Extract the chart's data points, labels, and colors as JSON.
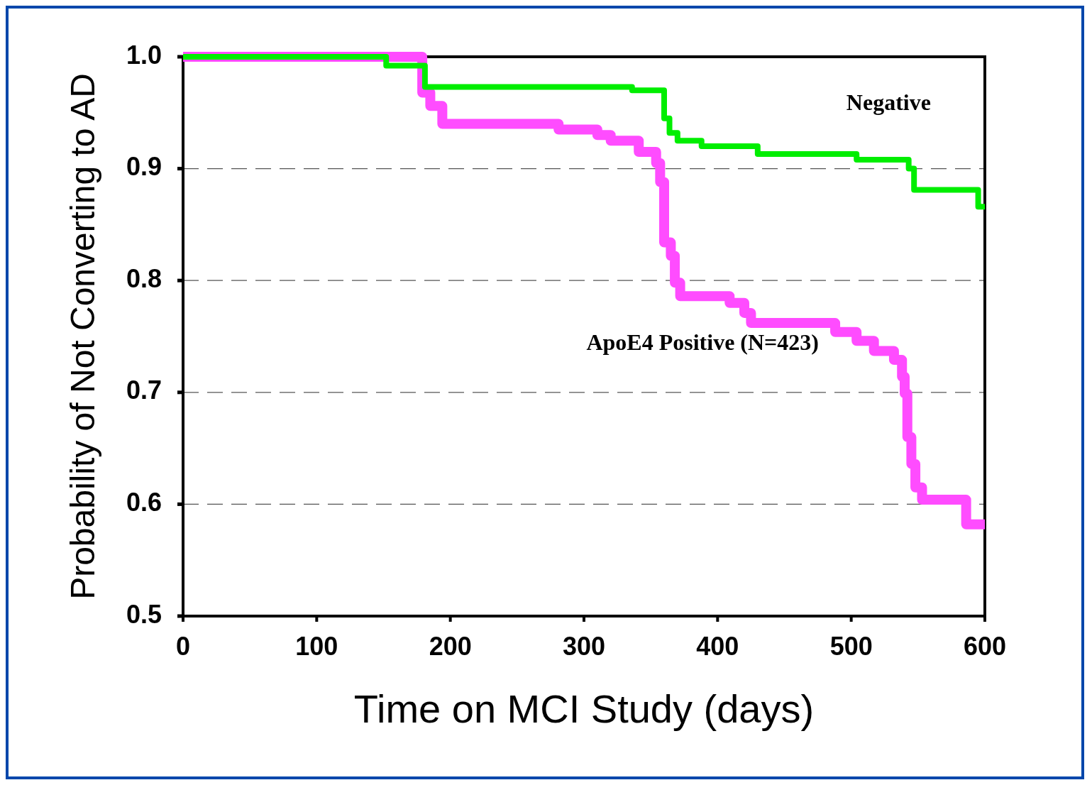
{
  "chart_data": {
    "type": "step",
    "xlabel": "Time on MCI Study (days)",
    "ylabel": "Probability of Not Converting to AD",
    "xlim": [
      0,
      600
    ],
    "xticks": [
      0,
      100,
      200,
      300,
      400,
      500,
      600
    ],
    "ylim": [
      0.5,
      1.0
    ],
    "yticks": [
      {
        "value": 0.5,
        "label": "0.5"
      },
      {
        "value": 0.6,
        "label": "0.6"
      },
      {
        "value": 0.7,
        "label": "0.7"
      },
      {
        "value": 0.8,
        "label": "0.8"
      },
      {
        "value": 0.9,
        "label": "0.9"
      },
      {
        "value": 1.0,
        "label": "1.0"
      }
    ],
    "grid": "y",
    "line_style": "solid",
    "series": [
      {
        "name": "ApoE4 Positive (N=423)",
        "color": "#ff4cff",
        "x": [
          0,
          179,
          185,
          194,
          281,
          310,
          320,
          341,
          354,
          357,
          360,
          365,
          368,
          372,
          380,
          409,
          415,
          420,
          425,
          428,
          488,
          504,
          517,
          532,
          538,
          540,
          542,
          545,
          548,
          553,
          560,
          582,
          586,
          600
        ],
        "values": [
          1.0,
          0.968,
          0.956,
          0.94,
          0.935,
          0.93,
          0.925,
          0.915,
          0.905,
          0.888,
          0.834,
          0.822,
          0.798,
          0.786,
          0.786,
          0.78,
          0.78,
          0.771,
          0.762,
          0.762,
          0.754,
          0.746,
          0.737,
          0.729,
          0.714,
          0.699,
          0.66,
          0.636,
          0.615,
          0.604,
          0.604,
          0.604,
          0.582,
          0.582
        ]
      },
      {
        "name": "Negative",
        "color": "#00ee00",
        "x": [
          0,
          152,
          181,
          336,
          360,
          364,
          370,
          388,
          430,
          504,
          543,
          547,
          595,
          600
        ],
        "values": [
          1.0,
          0.992,
          0.973,
          0.97,
          0.945,
          0.932,
          0.925,
          0.92,
          0.913,
          0.908,
          0.9,
          0.881,
          0.866,
          0.866
        ]
      }
    ]
  }
}
